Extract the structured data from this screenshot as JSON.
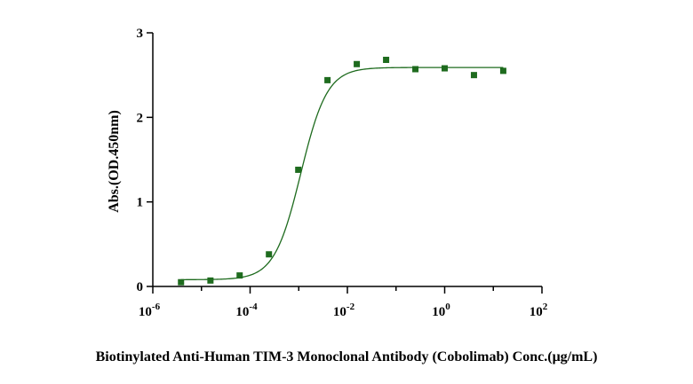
{
  "chart_data": {
    "type": "scatter",
    "title": "",
    "xlabel": "Biotinylated Anti-Human TIM-3 Monoclonal Antibody (Cobolimab) Conc.(μg/mL)",
    "ylabel": "Abs.(OD.450nm)",
    "x_scale": "log10",
    "xlim": [
      1e-06,
      100
    ],
    "ylim": [
      0,
      3
    ],
    "x_ticks": [
      {
        "value": 1e-06,
        "base": "10",
        "exp": "-6"
      },
      {
        "value": 0.0001,
        "base": "10",
        "exp": "-4"
      },
      {
        "value": 0.01,
        "base": "10",
        "exp": "-2"
      },
      {
        "value": 1,
        "base": "10",
        "exp": "0"
      },
      {
        "value": 100,
        "base": "10",
        "exp": "2"
      }
    ],
    "y_ticks": [
      0,
      1,
      2,
      3
    ],
    "grid": false,
    "marker_color": "#1e6b1e",
    "line_color": "#1e6b1e",
    "series": [
      {
        "x": [
          3.8e-06,
          1.53e-05,
          6.1e-05,
          0.000244,
          0.000977,
          0.0039,
          0.0156,
          0.0625,
          0.25,
          1.0,
          4.0,
          16.0
        ],
        "y": [
          0.05,
          0.07,
          0.13,
          0.38,
          1.38,
          2.44,
          2.63,
          2.68,
          2.57,
          2.58,
          2.5,
          2.55
        ]
      }
    ],
    "fit": {
      "model": "4PL",
      "bottom": 0.08,
      "top": 2.59,
      "ec50": 0.0011,
      "hill": 1.6
    }
  }
}
